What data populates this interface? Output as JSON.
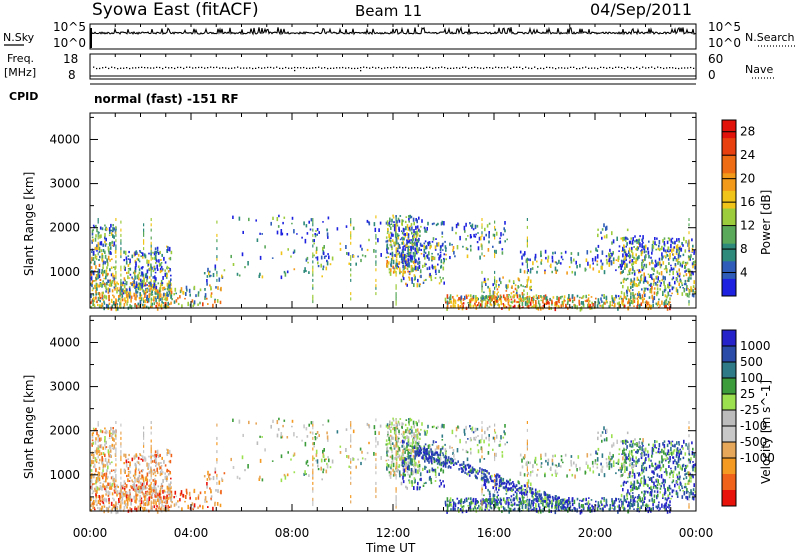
{
  "header": {
    "title_left": "Syowa East (fitACF)",
    "title_center": "Beam 11",
    "title_right": "04/Sep/2011"
  },
  "strip": {
    "nsky_label": "N.Sky",
    "nsky_ticks": [
      "10^5",
      "10^0"
    ],
    "nsearch_label": "N.Search",
    "nsearch_ticks": [
      "10^5",
      "10^0"
    ],
    "freq_label_1": "Freq.",
    "freq_label_2": "[MHz]",
    "freq_ticks": [
      "18",
      "8"
    ],
    "nave_label": "Nave",
    "nave_ticks": [
      "60",
      "0"
    ],
    "cpid_label": "CPID",
    "cpid_text": "normal (fast) -151 RF"
  },
  "colors": {
    "power": [
      "#1e22e0",
      "#2e5cb8",
      "#2e8a7a",
      "#5aa85a",
      "#9ccb3c",
      "#f0c418",
      "#f39a1a",
      "#ee6d14",
      "#e8400e",
      "#e0120a"
    ],
    "velocity": [
      "#e8140c",
      "#f0621a",
      "#f49a22",
      "#e6a75a",
      "#c8c8c8",
      "#bcbcbc",
      "#9ce050",
      "#3c9c3c",
      "#2e7a86",
      "#2a4ca8",
      "#2422c8"
    ]
  },
  "chart_data": [
    {
      "type": "heatmap",
      "name": "power",
      "xlabel": "",
      "ylabel": "Slant Range [km]",
      "x_range_ut": [
        "00:00",
        "00:00"
      ],
      "xticks": [
        "00:00",
        "04:00",
        "08:00",
        "12:00",
        "16:00",
        "20:00",
        "00:00"
      ],
      "ylim": [
        180,
        4600
      ],
      "yticks": [
        1000,
        2000,
        3000,
        4000
      ],
      "colorbar_label": "Power [dB]",
      "colorbar_ticks": [
        4,
        8,
        12,
        16,
        20,
        24,
        28
      ],
      "colorbar_range": [
        0,
        30
      ]
    },
    {
      "type": "heatmap",
      "name": "velocity",
      "xlabel": "Time UT",
      "ylabel": "Slant Range [km]",
      "x_range_ut": [
        "00:00",
        "00:00"
      ],
      "xticks": [
        "00:00",
        "04:00",
        "08:00",
        "12:00",
        "16:00",
        "20:00",
        "00:00"
      ],
      "ylim": [
        180,
        4600
      ],
      "yticks": [
        1000,
        2000,
        3000,
        4000
      ],
      "colorbar_label": "Velocity [m s^-1]",
      "colorbar_ticks": [
        "1000",
        "500",
        "100",
        "25",
        "-25",
        "-100",
        "-500",
        "-1000"
      ]
    }
  ]
}
